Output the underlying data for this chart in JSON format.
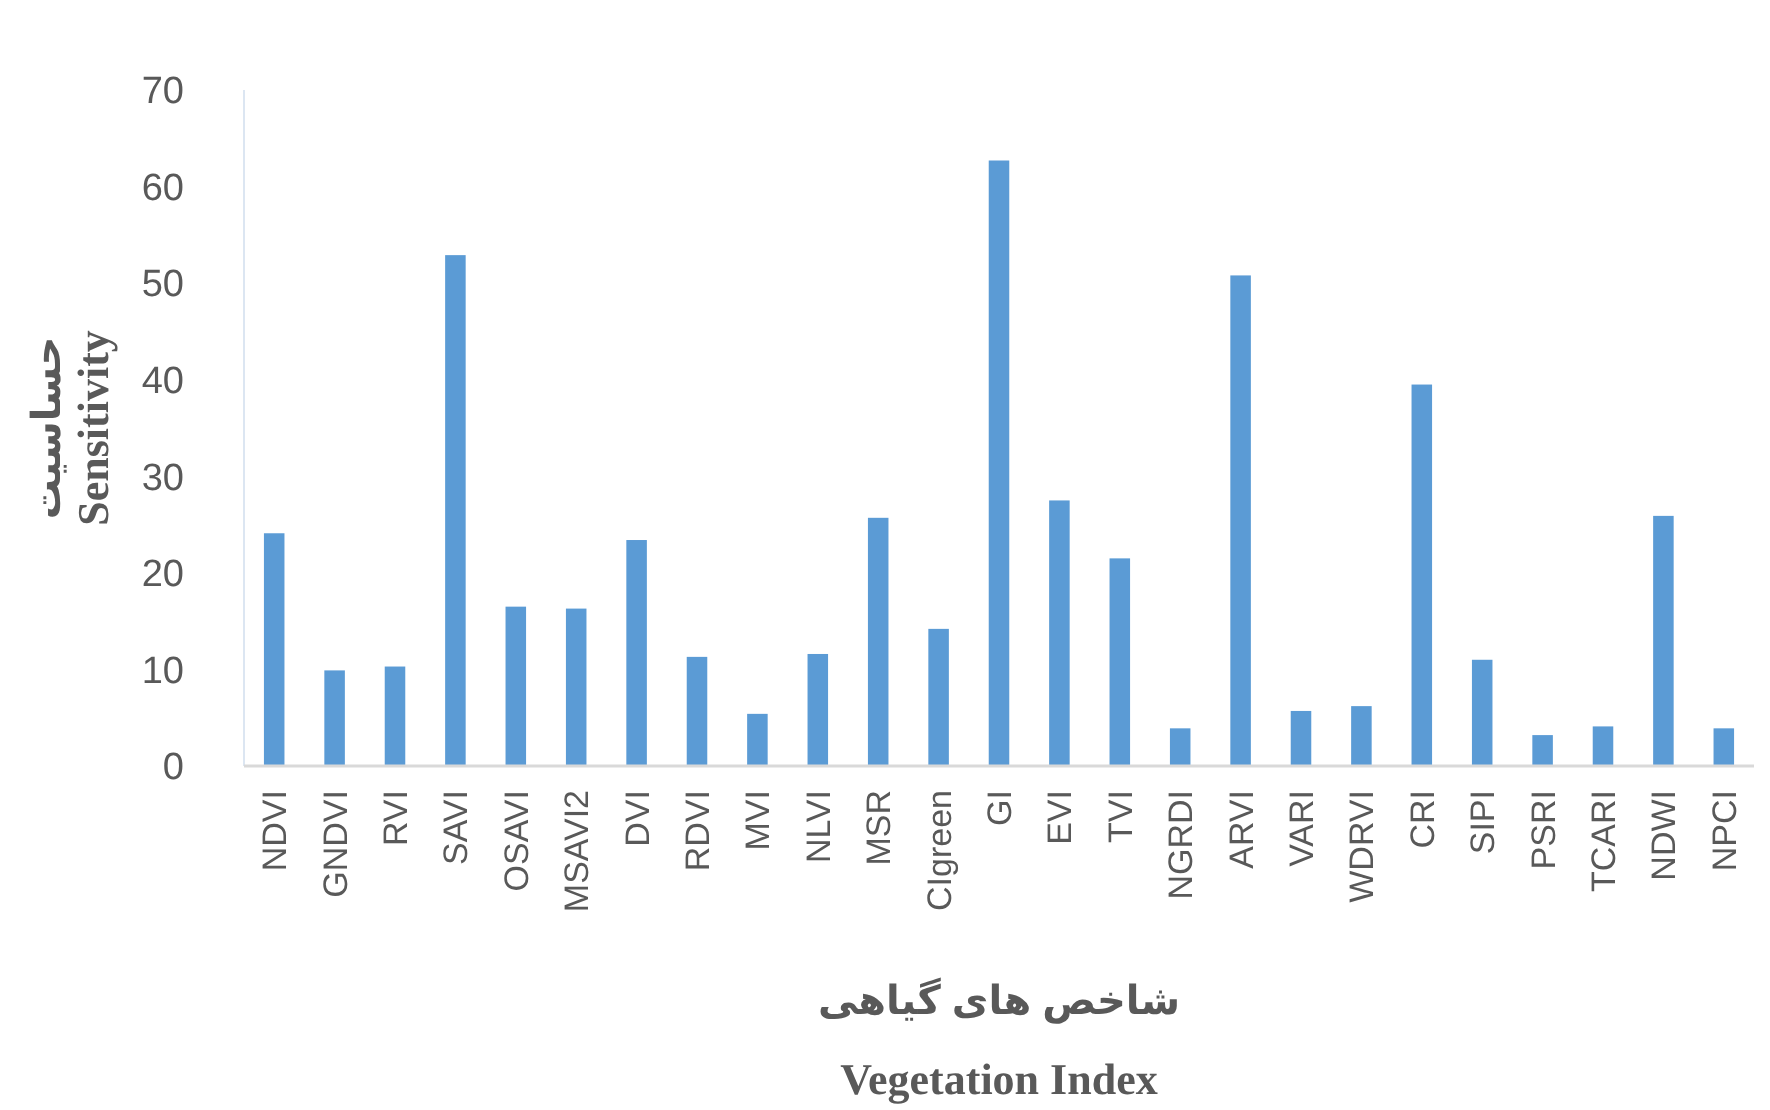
{
  "chart_data": {
    "type": "bar",
    "xlabel": "شاخص های گیاهی\nVegetation Index",
    "ylabel": "حساسیت\nSensitivity",
    "categories": [
      "NDVI",
      "GNDVI",
      "RVI",
      "SAVI",
      "OSAVI",
      "MSAVI2",
      "DVI",
      "RDVI",
      "MVI",
      "NLVI",
      "MSR",
      "CIgreen",
      "GI",
      "EVI",
      "TVI",
      "NGRDI",
      "ARVI",
      "VARI",
      "WDRVI",
      "CRI",
      "SIPI",
      "PSRI",
      "TCARI",
      "NDWI",
      "NPCI"
    ],
    "values": [
      24.1,
      9.9,
      10.3,
      52.9,
      16.5,
      16.3,
      23.4,
      11.3,
      5.4,
      11.6,
      25.7,
      14.2,
      62.7,
      27.5,
      21.5,
      3.9,
      50.8,
      5.7,
      6.2,
      39.5,
      11.0,
      3.2,
      4.1,
      25.9,
      3.9
    ],
    "color": "#5b9bd5",
    "ylim": [
      0,
      70
    ],
    "yticks": [
      0,
      10,
      20,
      30,
      40,
      50,
      60,
      70
    ],
    "grid": false
  }
}
